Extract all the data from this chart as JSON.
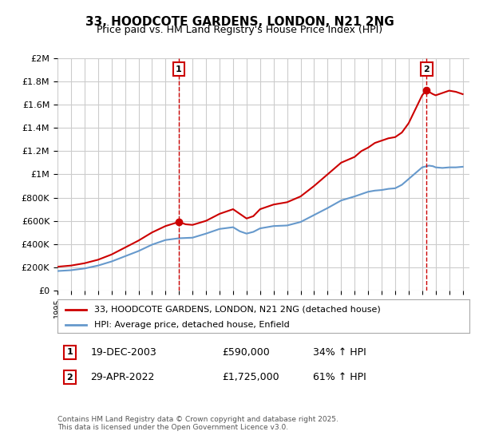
{
  "title": "33, HOODCOTE GARDENS, LONDON, N21 2NG",
  "subtitle": "Price paid vs. HM Land Registry's House Price Index (HPI)",
  "bg_color": "#ffffff",
  "plot_bg_color": "#ffffff",
  "grid_color": "#cccccc",
  "red_color": "#cc0000",
  "blue_color": "#6699cc",
  "legend_label_red": "33, HOODCOTE GARDENS, LONDON, N21 2NG (detached house)",
  "legend_label_blue": "HPI: Average price, detached house, Enfield",
  "footer": "Contains HM Land Registry data © Crown copyright and database right 2025.\nThis data is licensed under the Open Government Licence v3.0.",
  "marker1_date": "19-DEC-2003",
  "marker1_price": "£590,000",
  "marker1_hpi": "34% ↑ HPI",
  "marker1_x": 2003.97,
  "marker1_y": 590000,
  "marker2_date": "29-APR-2022",
  "marker2_price": "£1,725,000",
  "marker2_hpi": "61% ↑ HPI",
  "marker2_x": 2022.33,
  "marker2_y": 1725000,
  "ylim": [
    0,
    2000000
  ],
  "xlim": [
    1995,
    2025.5
  ]
}
